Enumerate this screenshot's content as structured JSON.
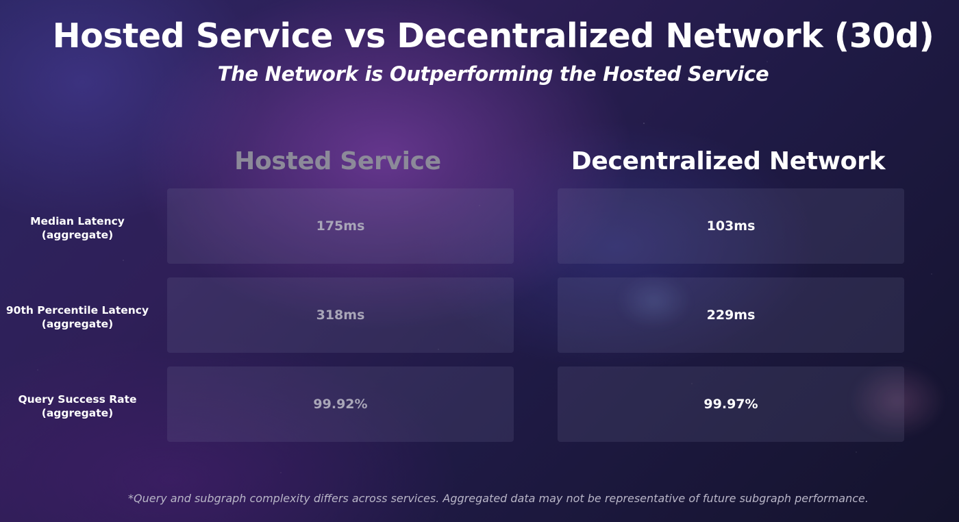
{
  "title": "Hosted Service vs Decentralized Network (30d)",
  "subtitle": "The Network is Outperforming the Hosted Service",
  "columns": {
    "hosted": "Hosted Service",
    "network": "Decentralized Network"
  },
  "rows": [
    {
      "label_line1": "Median Latency",
      "label_line2": "(aggregate)",
      "hosted": "175ms",
      "network": "103ms"
    },
    {
      "label_line1": "90th Percentile Latency",
      "label_line2": "(aggregate)",
      "hosted": "318ms",
      "network": "229ms"
    },
    {
      "label_line1": "Query Success Rate",
      "label_line2": "(aggregate)",
      "hosted": "99.92%",
      "network": "99.97%"
    }
  ],
  "footnote": "*Query and subgraph complexity differs across services. Aggregated data may not be representative of future subgraph performance.",
  "colors": {
    "hosted_text": "#8c8a99",
    "network_text": "#ffffff",
    "background_accent": "#6a3a9a"
  }
}
